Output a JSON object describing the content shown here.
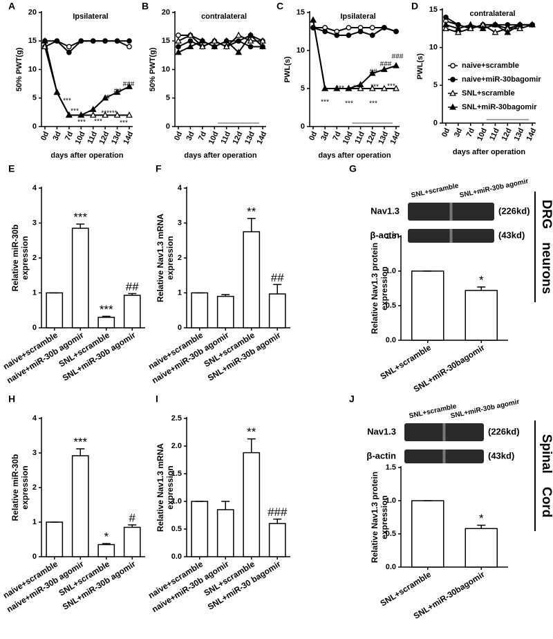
{
  "chart_data": [
    {
      "panel": "A",
      "type": "line",
      "title": "Ipsilateral",
      "ylabel": "50% PWT(g)",
      "xlabel": "days after operation",
      "categories": [
        "0d",
        "3d",
        "7d",
        "10d",
        "11d",
        "12d",
        "13d",
        "14d"
      ],
      "ylim": [
        0,
        20
      ],
      "yticks": [
        0,
        5,
        10,
        15,
        20
      ],
      "series": [
        {
          "marker": "open-circle",
          "color": "#000000",
          "values": [
            14,
            15,
            14,
            15,
            15,
            15,
            15,
            14
          ]
        },
        {
          "marker": "filled-circle",
          "color": "#000000",
          "values": [
            15,
            15,
            13,
            15,
            15,
            15,
            15,
            15
          ]
        },
        {
          "marker": "open-triangle",
          "color": "#000000",
          "values": [
            14,
            6,
            2,
            2,
            2,
            2,
            2,
            2
          ]
        },
        {
          "marker": "filled-triangle",
          "color": "#000000",
          "values": [
            15,
            6,
            2,
            2,
            3,
            5,
            6,
            7
          ]
        }
      ],
      "annotations": [
        "***",
        "***",
        "***",
        "***",
        "#",
        "##",
        "###",
        "******",
        "***"
      ]
    },
    {
      "panel": "B",
      "type": "line",
      "title": "contralateral",
      "ylabel": "50% PWT(g)",
      "xlabel": "days after operation",
      "categories": [
        "0d",
        "3d",
        "7d",
        "10d",
        "11d",
        "12d",
        "13d",
        "14d"
      ],
      "ylim": [
        0,
        20
      ],
      "yticks": [
        0,
        5,
        10,
        15,
        20
      ],
      "series": [
        {
          "marker": "open-circle",
          "color": "#000000",
          "values": [
            16,
            16,
            15,
            14,
            15,
            15,
            16,
            15
          ]
        },
        {
          "marker": "filled-circle",
          "color": "#000000",
          "values": [
            14,
            15,
            14,
            15,
            14,
            15,
            14,
            14
          ]
        },
        {
          "marker": "open-triangle",
          "color": "#000000",
          "values": [
            15,
            16,
            14,
            15,
            14,
            16,
            15,
            15
          ]
        },
        {
          "marker": "filled-triangle",
          "color": "#000000",
          "values": [
            13,
            14,
            15,
            14,
            15,
            13,
            16,
            14
          ]
        }
      ]
    },
    {
      "panel": "C",
      "type": "line",
      "title": "Ipsilateral",
      "ylabel": "PWL(s)",
      "xlabel": "days after operation",
      "categories": [
        "0d",
        "3d",
        "7d",
        "10d",
        "11d",
        "12d",
        "13d",
        "14d"
      ],
      "ylim": [
        0,
        15
      ],
      "yticks": [
        0,
        5,
        10,
        15
      ],
      "series": [
        {
          "marker": "open-circle",
          "color": "#000000",
          "values": [
            13,
            13,
            12.5,
            13,
            13,
            13,
            13,
            12.5
          ]
        },
        {
          "marker": "filled-circle",
          "color": "#000000",
          "values": [
            13,
            12.5,
            12,
            12,
            12.5,
            12,
            13,
            12.5
          ]
        },
        {
          "marker": "open-triangle",
          "color": "#000000",
          "values": [
            14,
            5,
            5,
            5,
            5,
            5,
            5,
            5
          ]
        },
        {
          "marker": "filled-triangle",
          "color": "#000000",
          "values": [
            14,
            5,
            5,
            5,
            5.5,
            7,
            7.5,
            8
          ]
        }
      ],
      "annotations": [
        "***",
        "***",
        "***",
        "***",
        "##",
        "###",
        "###",
        "***",
        "***",
        "***"
      ]
    },
    {
      "panel": "D",
      "type": "line",
      "title": "contralateral",
      "ylabel": "PWL(s)",
      "xlabel": "days after operation",
      "categories": [
        "0d",
        "3d",
        "7d",
        "10d",
        "11d",
        "12d",
        "13d",
        "14d"
      ],
      "ylim": [
        0,
        15
      ],
      "yticks": [
        0,
        5,
        10,
        15
      ],
      "legend": "center",
      "series": [
        {
          "name": "naive+scramble",
          "marker": "open-circle",
          "color": "#000000",
          "values": [
            13.5,
            13,
            12.5,
            13,
            13,
            12.5,
            13,
            13
          ]
        },
        {
          "name": "naive+miR-30bagomir",
          "marker": "filled-circle",
          "color": "#000000",
          "values": [
            14,
            13,
            12.5,
            13,
            13,
            13,
            13,
            13
          ]
        },
        {
          "name": "SNL+scramble",
          "marker": "open-triangle",
          "color": "#000000",
          "values": [
            12.5,
            12,
            12.5,
            13,
            12,
            12.5,
            12.5,
            13
          ]
        },
        {
          "name": "SNL+miR-30bagomir",
          "marker": "filled-triangle",
          "color": "#000000",
          "values": [
            13,
            12.5,
            13,
            12.5,
            13,
            12,
            13,
            13
          ]
        }
      ]
    },
    {
      "panel": "E",
      "type": "bar",
      "ylabel": "Relative miR-30b expression",
      "categories": [
        "naive+scramble",
        "naive+miR-30b agomir",
        "SNL+scramble",
        "SNL+miR-30b agomir"
      ],
      "values": [
        1,
        2.85,
        0.3,
        0.93
      ],
      "errors": [
        0,
        0.12,
        0.03,
        0.05
      ],
      "bar_labels": [
        null,
        "***",
        "***",
        "##"
      ],
      "ylim": [
        0,
        4
      ],
      "yticks": [
        0,
        1,
        2,
        3,
        4
      ]
    },
    {
      "panel": "F",
      "type": "bar",
      "ylabel": "Relative Nav1.3 mRNA expression",
      "categories": [
        "naive+scramble",
        "naive+miR-30b agomir",
        "SNL+scramble",
        "SNL+miR-30b agomir"
      ],
      "values": [
        1,
        0.9,
        2.75,
        0.97
      ],
      "errors": [
        0,
        0.05,
        0.38,
        0.27
      ],
      "bar_labels": [
        null,
        null,
        "**",
        "##"
      ],
      "ylim": [
        0,
        4
      ],
      "yticks": [
        0,
        1,
        2,
        3,
        4
      ]
    },
    {
      "panel": "G",
      "type": "bar",
      "ylabel": "Relative Nav1.3 protein expression",
      "categories": [
        "SNL+scramble",
        "SNL+miR-30bagomir"
      ],
      "values": [
        1,
        0.72
      ],
      "errors": [
        0,
        0.05
      ],
      "bar_labels": [
        null,
        "*"
      ],
      "ylim": [
        0,
        1.5
      ],
      "yticks": [
        {
          "value": 0,
          "label": "0.0"
        },
        0.5,
        {
          "value": 1,
          "label": "1.0"
        },
        1.5
      ],
      "blot": {
        "columns": [
          "SNL+scramble",
          "SNL+miR-30b agomir"
        ],
        "rows": [
          {
            "name": "Nav1.3",
            "size": "(226kd)"
          },
          {
            "name": "β-actin",
            "size": "(43kd)"
          }
        ]
      },
      "side_label": "DRG neurons"
    },
    {
      "panel": "H",
      "type": "bar",
      "ylabel": "Relative miR-30b expression",
      "categories": [
        "naive+scramble",
        "naive+miR-30b agomir",
        "SNL+scramble",
        "SNL+miR-30b agomir"
      ],
      "values": [
        1,
        2.92,
        0.35,
        0.85
      ],
      "errors": [
        0,
        0.2,
        0.03,
        0.07
      ],
      "bar_labels": [
        null,
        "***",
        "*",
        "#"
      ],
      "ylim": [
        0,
        4
      ],
      "yticks": [
        0,
        1,
        2,
        3,
        4
      ]
    },
    {
      "panel": "I",
      "type": "bar",
      "ylabel": "Relative Nav1.3 mRNA expression",
      "categories": [
        "naive+scramble",
        "naive+miR-30b agomir",
        "SNL+scramble",
        "SNL+miR-30 bagomir"
      ],
      "values": [
        1,
        0.85,
        1.88,
        0.6
      ],
      "errors": [
        0,
        0.15,
        0.25,
        0.08
      ],
      "bar_labels": [
        null,
        null,
        "**",
        "###"
      ],
      "ylim": [
        0,
        2.5
      ],
      "yticks": [
        {
          "value": 0,
          "label": "0.0"
        },
        0.5,
        {
          "value": 1,
          "label": "1.0"
        },
        1.5,
        {
          "value": 2,
          "label": "2.0"
        },
        2.5
      ]
    },
    {
      "panel": "J",
      "type": "bar",
      "ylabel": "Relative Nav1.3 protein expression",
      "categories": [
        "SNL+scramble",
        "SNL+miR-30bagomir"
      ],
      "values": [
        1,
        0.58
      ],
      "errors": [
        0,
        0.05
      ],
      "bar_labels": [
        null,
        "*"
      ],
      "ylim": [
        0,
        1.5
      ],
      "yticks": [
        {
          "value": 0,
          "label": "0.0"
        },
        0.5,
        {
          "value": 1,
          "label": "1.0"
        },
        1.5
      ],
      "blot": {
        "columns": [
          "SNL+scramble",
          "SNL+miR-30b agomir"
        ],
        "rows": [
          {
            "name": "Nav1.3",
            "size": "(226kd)"
          },
          {
            "name": "β-actin",
            "size": "(43kd)"
          }
        ]
      },
      "side_label": "Spinal Cord"
    }
  ]
}
